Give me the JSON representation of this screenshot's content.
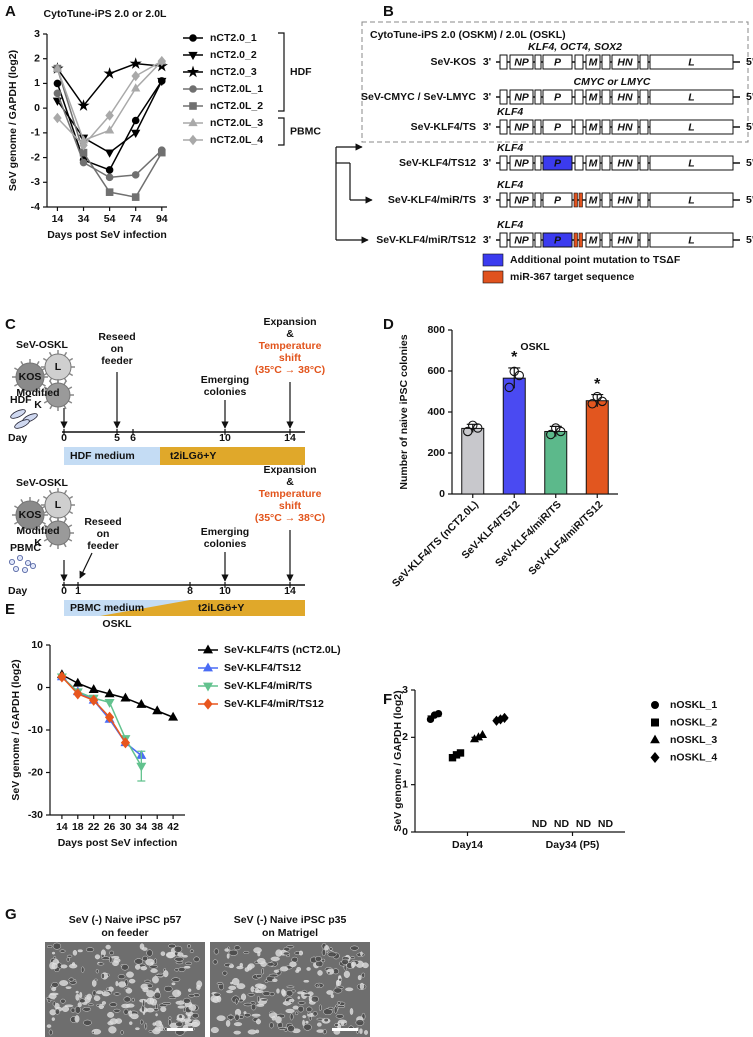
{
  "panel_labels": [
    "A",
    "B",
    "C",
    "D",
    "E",
    "F",
    "G"
  ],
  "chart_data": [
    {
      "type": "line",
      "title": "CytoTune-iPS 2.0 or 2.0L",
      "x_label": "Days post SeV infection",
      "y_label": "SeV genome / GAPDH (log2)",
      "x": [
        14,
        34,
        54,
        74,
        94
      ],
      "xlim": [
        6,
        98
      ],
      "xticks": [
        14,
        34,
        54,
        74,
        94
      ],
      "ylim": [
        -4,
        3
      ],
      "yticks": [
        -4,
        -3,
        -2,
        -1,
        0,
        1,
        2,
        3
      ],
      "groups": [
        {
          "name": "HDF",
          "series": [
            {
              "name": "nCT2.0_1",
              "color": "#000000",
              "marker": "circle",
              "values": [
                1.0,
                -2.1,
                -2.5,
                -0.5,
                1.1
              ]
            },
            {
              "name": "nCT2.0_2",
              "color": "#000000",
              "marker": "triangle-down",
              "values": [
                0.3,
                -1.2,
                -1.8,
                -1.0,
                1.1
              ]
            },
            {
              "name": "nCT2.0_3",
              "color": "#000000",
              "marker": "star",
              "values": [
                1.6,
                0.1,
                1.4,
                1.8,
                1.7
              ]
            },
            {
              "name": "nCT2.0L_1",
              "color": "#707070",
              "marker": "circle",
              "values": [
                0.6,
                -2.2,
                -2.8,
                -2.7,
                -1.7
              ]
            },
            {
              "name": "nCT2.0L_2",
              "color": "#707070",
              "marker": "square",
              "values": [
                1.6,
                -1.8,
                -3.4,
                -3.6,
                -1.8
              ]
            }
          ]
        },
        {
          "name": "PBMC",
          "series": [
            {
              "name": "nCT2.0L_3",
              "color": "#a9a9a9",
              "marker": "triangle",
              "values": [
                1.6,
                -1.3,
                -0.9,
                0.8,
                1.9
              ]
            },
            {
              "name": "nCT2.0L_4",
              "color": "#a9a9a9",
              "marker": "diamond",
              "values": [
                -0.4,
                -1.5,
                -0.3,
                1.3,
                1.9
              ]
            }
          ]
        }
      ]
    },
    {
      "type": "bar",
      "title": "OSKL",
      "y_label": "Number of naive iPSC colonies",
      "categories": [
        "SeV-KLF4/TS (nCT2.0L)",
        "SeV-KLF4/TS12",
        "SeV-KLF4/miR/TS",
        "SeV-KLF4/miR/TS12"
      ],
      "values": [
        320,
        565,
        305,
        455
      ],
      "errors": [
        20,
        50,
        25,
        30
      ],
      "points": [
        [
          305,
          335,
          322
        ],
        [
          520,
          598,
          578
        ],
        [
          290,
          322,
          305
        ],
        [
          440,
          475,
          452
        ]
      ],
      "colors": [
        "#c8c8cc",
        "#4a4af2",
        "#5cb98b",
        "#e2561f"
      ],
      "significance": [
        null,
        "*",
        null,
        "*"
      ],
      "ylim": [
        0,
        800
      ],
      "yticks": [
        0,
        200,
        400,
        600,
        800
      ]
    },
    {
      "type": "line",
      "title": "OSKL",
      "x_label": "Days post SeV infection",
      "y_label": "SeV genome / GAPDH (log2)",
      "x": [
        14,
        18,
        22,
        26,
        30,
        34,
        38,
        42
      ],
      "xlim": [
        11,
        45
      ],
      "xticks": [
        14,
        18,
        22,
        26,
        30,
        34,
        38,
        42
      ],
      "ylim": [
        -30,
        10
      ],
      "yticks": [
        -30,
        -20,
        -10,
        0,
        10
      ],
      "series": [
        {
          "name": "SeV-KLF4/TS (nCT2.0L)",
          "color": "#000000",
          "marker": "triangle",
          "values": [
            3,
            1,
            -0.5,
            -1.5,
            -2.5,
            -4,
            -5.5,
            -7
          ]
        },
        {
          "name": "SeV-KLF4/TS12",
          "color": "#4a6cf5",
          "marker": "triangle",
          "values": [
            2.5,
            -1,
            -3,
            -7.5,
            -13,
            -16,
            null,
            null
          ]
        },
        {
          "name": "SeV-KLF4/miR/TS",
          "color": "#62c28e",
          "marker": "triangle-down",
          "values": [
            2.5,
            -1,
            -2.5,
            -3.5,
            -12,
            -18.5,
            null,
            null
          ],
          "errors": [
            null,
            null,
            null,
            null,
            null,
            3.5,
            null,
            null
          ]
        },
        {
          "name": "SeV-KLF4/miR/TS12",
          "color": "#e8561e",
          "marker": "diamond",
          "values": [
            2.5,
            -1.5,
            -3,
            -7,
            -13,
            null,
            null,
            null
          ]
        }
      ]
    },
    {
      "type": "dot",
      "y_label": "SeV genome / GAPDH (log2)",
      "categories": [
        "Day14",
        "Day34 (P5)"
      ],
      "ylim": [
        0,
        3
      ],
      "yticks": [
        0,
        1,
        2,
        3
      ],
      "series": [
        {
          "name": "nOSKL_1",
          "color": "#000000",
          "marker": "circle",
          "values": [
            2.45,
            null
          ],
          "value_labels": [
            null,
            "ND"
          ],
          "replicates": [
            [
              2.38,
              2.47,
              2.5
            ],
            []
          ]
        },
        {
          "name": "nOSKL_2",
          "color": "#000000",
          "marker": "square",
          "values": [
            1.62,
            null
          ],
          "value_labels": [
            null,
            "ND"
          ],
          "replicates": [
            [
              1.57,
              1.63,
              1.67
            ],
            []
          ]
        },
        {
          "name": "nOSKL_3",
          "color": "#000000",
          "marker": "triangle",
          "values": [
            2.0,
            null
          ],
          "value_labels": [
            null,
            "ND"
          ],
          "replicates": [
            [
              1.96,
              2.0,
              2.05
            ],
            []
          ]
        },
        {
          "name": "nOSKL_4",
          "color": "#000000",
          "marker": "diamond",
          "values": [
            2.38,
            null
          ],
          "value_labels": [
            null,
            "ND"
          ],
          "replicates": [
            [
              2.35,
              2.38,
              2.41
            ],
            []
          ]
        }
      ]
    }
  ],
  "diagram_b": {
    "title": "CytoTune-iPS 2.0 (OSKM) / 2.0L (OSKL)",
    "ends": [
      "3'",
      "5'"
    ],
    "genes": [
      "NP",
      "P",
      "M",
      "HN",
      "L"
    ],
    "rows": [
      {
        "name": "SeV-KOS",
        "insert": "KLF4, OCT4, SOX2",
        "p_mutation": false,
        "mir_target": false
      },
      {
        "name": "SeV-CMYC / SeV-LMYC",
        "insert": "CMYC or LMYC",
        "p_mutation": false,
        "mir_target": false
      },
      {
        "name": "SeV-KLF4/TS",
        "insert": "KLF4",
        "p_mutation": false,
        "mir_target": false
      },
      {
        "name": "SeV-KLF4/TS12",
        "insert": "KLF4",
        "p_mutation": true,
        "mir_target": false
      },
      {
        "name": "SeV-KLF4/miR/TS",
        "insert": "KLF4",
        "p_mutation": false,
        "mir_target": true
      },
      {
        "name": "SeV-KLF4/miR/TS12",
        "insert": "KLF4",
        "p_mutation": true,
        "mir_target": true
      }
    ],
    "legend": [
      {
        "label": "Additional point mutation to TSΔF",
        "color": "#3b3bef"
      },
      {
        "label": "miR-367 target sequence",
        "color": "#e0521e"
      }
    ]
  },
  "diagram_c": {
    "day_label": "Day",
    "highlight_color": "#e2541c",
    "timelines": [
      {
        "cell": "HDF",
        "vector": "SeV-OSKL",
        "virus": [
          "KOS",
          "L",
          "Modified",
          "K"
        ],
        "days": [
          0,
          5,
          6,
          10,
          14
        ],
        "events": [
          [
            "Reseed",
            "on",
            "feeder"
          ],
          [
            "Emerging",
            "colonies"
          ]
        ],
        "final": [
          "Expansion",
          "&"
        ],
        "highlight": [
          "Temperature",
          "shift",
          "(35°C → 38°C)"
        ],
        "media": [
          "HDF medium",
          "t2iLGö+Y"
        ]
      },
      {
        "cell": "PBMC",
        "vector": "SeV-OSKL",
        "virus": [
          "KOS",
          "L",
          "Modified",
          "K"
        ],
        "days": [
          0,
          1,
          8,
          10,
          14
        ],
        "events": [
          [
            "Reseed",
            "on",
            "feeder"
          ],
          [
            "Emerging",
            "colonies"
          ]
        ],
        "final": [
          "Expansion",
          "&"
        ],
        "highlight": [
          "Temperature",
          "shift",
          "(35°C → 38°C)"
        ],
        "media": [
          "PBMC medium",
          "t2iLGö+Y"
        ]
      }
    ]
  },
  "figure_g": {
    "images": [
      {
        "caption": [
          "SeV (-) Naive iPSC p57",
          "on feeder"
        ]
      },
      {
        "caption": [
          "SeV (-) Naive iPSC p35",
          "on Matrigel"
        ]
      }
    ]
  }
}
